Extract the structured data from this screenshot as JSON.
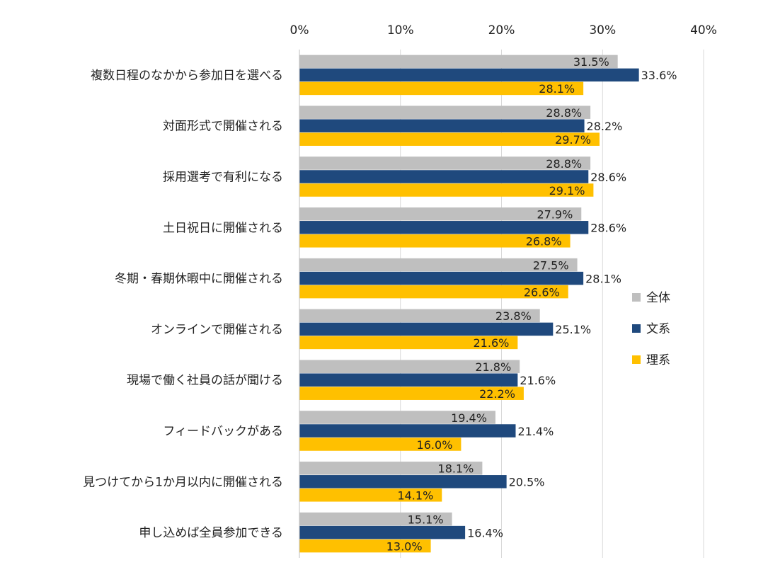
{
  "chart_data": {
    "type": "bar",
    "orientation": "horizontal",
    "title": "",
    "xlabel": "",
    "ylabel": "",
    "xlim": [
      0,
      40
    ],
    "x_ticks": [
      0,
      10,
      20,
      30,
      40
    ],
    "x_tick_labels": [
      "0%",
      "10%",
      "20%",
      "30%",
      "40%"
    ],
    "grid": true,
    "legend_position": "right",
    "categories": [
      "複数日程のなかから参加日を選べる",
      "対面形式で開催される",
      "採用選考で有利になる",
      "土日祝日に開催される",
      "冬期・春期休暇中に開催される",
      "オンラインで開催される",
      "現場で働く社員の話が聞ける",
      "フィードバックがある",
      "見つけてから1か月以内に開催される",
      "申し込めば全員参加できる"
    ],
    "series": [
      {
        "name": "全体",
        "color": "#bfbfbf",
        "values": [
          31.5,
          28.8,
          28.8,
          27.9,
          27.5,
          23.8,
          21.8,
          19.4,
          18.1,
          15.1
        ],
        "labels": [
          "31.5%",
          "28.8%",
          "28.8%",
          "27.9%",
          "27.5%",
          "23.8%",
          "21.8%",
          "19.4%",
          "18.1%",
          "15.1%"
        ]
      },
      {
        "name": "文系",
        "color": "#1f497d",
        "values": [
          33.6,
          28.2,
          28.6,
          28.6,
          28.1,
          25.1,
          21.6,
          21.4,
          20.5,
          16.4
        ],
        "labels": [
          "33.6%",
          "28.2%",
          "28.6%",
          "28.6%",
          "28.1%",
          "25.1%",
          "21.6%",
          "21.4%",
          "20.5%",
          "16.4%"
        ]
      },
      {
        "name": "理系",
        "color": "#ffc000",
        "values": [
          28.1,
          29.7,
          29.1,
          26.8,
          26.6,
          21.6,
          22.2,
          16.0,
          14.1,
          13.0
        ],
        "labels": [
          "28.1%",
          "29.7%",
          "29.1%",
          "26.8%",
          "26.6%",
          "21.6%",
          "22.2%",
          "16.0%",
          "14.1%",
          "13.0%"
        ]
      }
    ]
  }
}
